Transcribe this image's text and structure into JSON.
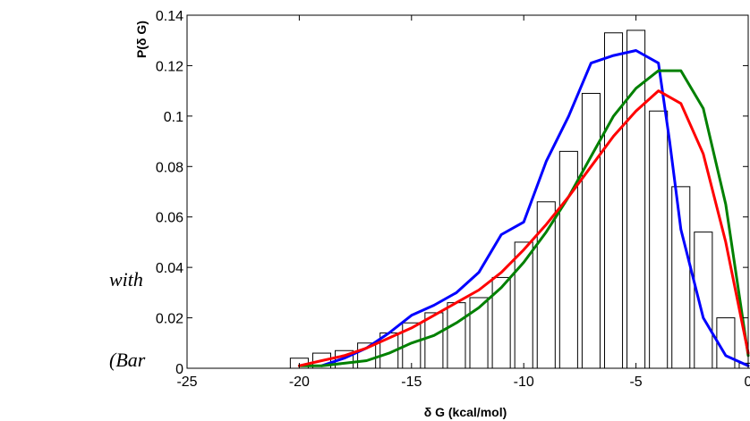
{
  "side_text": {
    "line1": "with",
    "line2": "(Bar"
  },
  "chart_data": {
    "type": "bar",
    "xlabel": "δ G (kcal/mol)",
    "ylabel": "P(δ G)",
    "xlim": [
      -25,
      0
    ],
    "ylim": [
      0,
      0.14
    ],
    "xticks": [
      -25,
      -20,
      -15,
      -10,
      -5,
      0
    ],
    "xtick_labels": [
      "-25",
      "-20",
      "-15",
      "-10",
      "-5",
      "0"
    ],
    "yticks": [
      0,
      0.02,
      0.04,
      0.06,
      0.08,
      0.1,
      0.12,
      0.14
    ],
    "ytick_labels": [
      "0",
      "0.02",
      "0.04",
      "0.06",
      "0.08",
      "0.1",
      "0.12",
      "0.14"
    ],
    "grid": false,
    "bars": {
      "bin_width": 1,
      "centers": [
        -20,
        -19,
        -18,
        -17,
        -16,
        -15,
        -14,
        -13,
        -12,
        -11,
        -10,
        -9,
        -8,
        -7,
        -6,
        -5,
        -4,
        -3,
        -2,
        -1,
        0
      ],
      "values": [
        0.004,
        0.006,
        0.007,
        0.01,
        0.014,
        0.018,
        0.022,
        0.026,
        0.028,
        0.036,
        0.05,
        0.066,
        0.086,
        0.109,
        0.133,
        0.134,
        0.102,
        0.072,
        0.054,
        0.02,
        0.002
      ],
      "fill": "#ffffff",
      "stroke": "#000000"
    },
    "series": [
      {
        "color": "#0000ff",
        "x": [
          -19,
          -18,
          -17,
          -16,
          -15,
          -14,
          -13,
          -12,
          -11,
          -10,
          -9,
          -8,
          -7,
          -6,
          -5,
          -4,
          -3.5,
          -3,
          -2,
          -1,
          0
        ],
        "y": [
          0.001,
          0.004,
          0.008,
          0.014,
          0.021,
          0.025,
          0.03,
          0.038,
          0.053,
          0.058,
          0.082,
          0.1,
          0.121,
          0.124,
          0.126,
          0.121,
          0.09,
          0.055,
          0.02,
          0.005,
          0.001
        ]
      },
      {
        "color": "#008000",
        "x": [
          -20,
          -19,
          -18,
          -17,
          -16,
          -15,
          -14,
          -13,
          -12,
          -11,
          -10,
          -9,
          -8,
          -7,
          -6,
          -5,
          -4,
          -3,
          -2,
          -1,
          0
        ],
        "y": [
          0.001,
          0.001,
          0.002,
          0.003,
          0.006,
          0.01,
          0.013,
          0.018,
          0.024,
          0.032,
          0.042,
          0.054,
          0.068,
          0.084,
          0.1,
          0.111,
          0.118,
          0.118,
          0.103,
          0.065,
          0.005
        ]
      },
      {
        "color": "#ff0000",
        "x": [
          -20,
          -19,
          -18,
          -17,
          -16,
          -15,
          -14,
          -13,
          -12,
          -11,
          -10,
          -9,
          -8,
          -7,
          -6,
          -5,
          -4,
          -3,
          -2,
          -1,
          0
        ],
        "y": [
          0.001,
          0.003,
          0.005,
          0.008,
          0.012,
          0.016,
          0.021,
          0.026,
          0.031,
          0.038,
          0.047,
          0.057,
          0.068,
          0.08,
          0.092,
          0.102,
          0.11,
          0.105,
          0.085,
          0.05,
          0.006
        ]
      }
    ]
  }
}
